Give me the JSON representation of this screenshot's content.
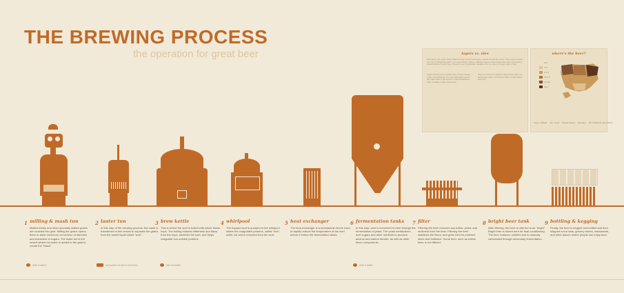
{
  "header": {
    "title": "THE BREWING PROCESS",
    "subtitle": "the operation for great beer"
  },
  "panels": {
    "lagers": {
      "heading": "lagers vs. ales",
      "intro": "Throughout the years, many different types of beer have been created around the world. These types of beers can vary in things like flavor, color and texture. Various different styles of beer means that there are distinct characteristics in each type. However, beer is generally classified into two types of styles: lager or ale.",
      "col_left": "Lagers are the more popular type of beer brewed. Lager yeast ferments at cooler temperatures and the yeast sinks to the bottom of the fermentation tank, creating a crisp, clean taste.",
      "col_right": "Ales are brewed at warmer temperatures with top-fermenting yeast, producing a fuller, fruitier flavor and body."
    },
    "map": {
      "heading": "where's the beer?",
      "legend": [
        "0-2",
        "2-5",
        "5-10",
        "10-15",
        "15-30",
        "30+"
      ],
      "legend_colors": [
        "#f2e2c2",
        "#e0c090",
        "#c99a5a",
        "#a97440",
        "#7d5030",
        "#5a3520"
      ],
      "key_labels": [
        "Lager / Pilsner",
        "Ale / Stout",
        "Wheat / Weiss",
        "Specialty"
      ],
      "source": "2011 Brewers Association"
    }
  },
  "steps": [
    {
      "num": "1",
      "name": "milling & mash tun",
      "desc": "Malted barley and other specialty malted grains are crushed into grist. Milling the grains opens them to allow maximum conversion of starches and extraction of sugars. The mash tun is the vessel where hot water is added to the grist to create the \"Mash\""
    },
    {
      "num": "2",
      "name": "lauter tun",
      "desc": "In this step of the brewing process, the mash is transferred to this vessel to separate the grains from the sweet liquid called \"wort\"."
    },
    {
      "num": "3",
      "name": "brew kettle",
      "desc": "This is where the wort is boiled with whole flower hops. The boiling extracts bitterness and flavor from the hops, sterilizes the wort, and helps coagulate non-soluble proteins."
    },
    {
      "num": "4",
      "name": "whirlpool",
      "desc": "The hopped wort is pumped to the whirlpool where the coagulated proteins, called \"trub\", settle out and is removed from the wort."
    },
    {
      "num": "5",
      "name": "heat exchanger",
      "desc": "The heat exchanger is a mechanical device used to rapidly reduce the temperature of the wort before it enters the fermentation tanks."
    },
    {
      "num": "6",
      "name": "fermentation tanks",
      "desc": "In this step, wort is converted to beer through the fermentation of yeast. The yeast metabolizes wort sugars and other nutrients to produce alcohol and carbon dioxide, as well as other flavor components."
    },
    {
      "num": "7",
      "name": "filter",
      "desc": "Filtering the beer removes any solids, yeast, and sediment from the beer. Filtering the beer stabilizes the flavor, and gives beer its polished shine and brilliance. Some beer, such as wheat beer, is not filtered."
    },
    {
      "num": "8",
      "name": "bright beer tank",
      "desc": "After filtering, the beer is referred to as \"bright\". Bright beer is stored here for final conditioning. The beer matures, clarifies and is naturally carbonated through secondary fermentation."
    },
    {
      "num": "9",
      "name": "bottling & kegging",
      "desc": "Finally, the beer is kegged and bottled and then shipped out to bars, grocery stores, restaurants, and other places where people can enjoy beer."
    }
  ],
  "notes": {
    "water": "water is added",
    "cattle": "spent grains are sent to local farms",
    "hops": "hops are added",
    "yeast": "yeast is added"
  },
  "colors": {
    "accent": "#c06a28",
    "background": "#f1ead8"
  }
}
